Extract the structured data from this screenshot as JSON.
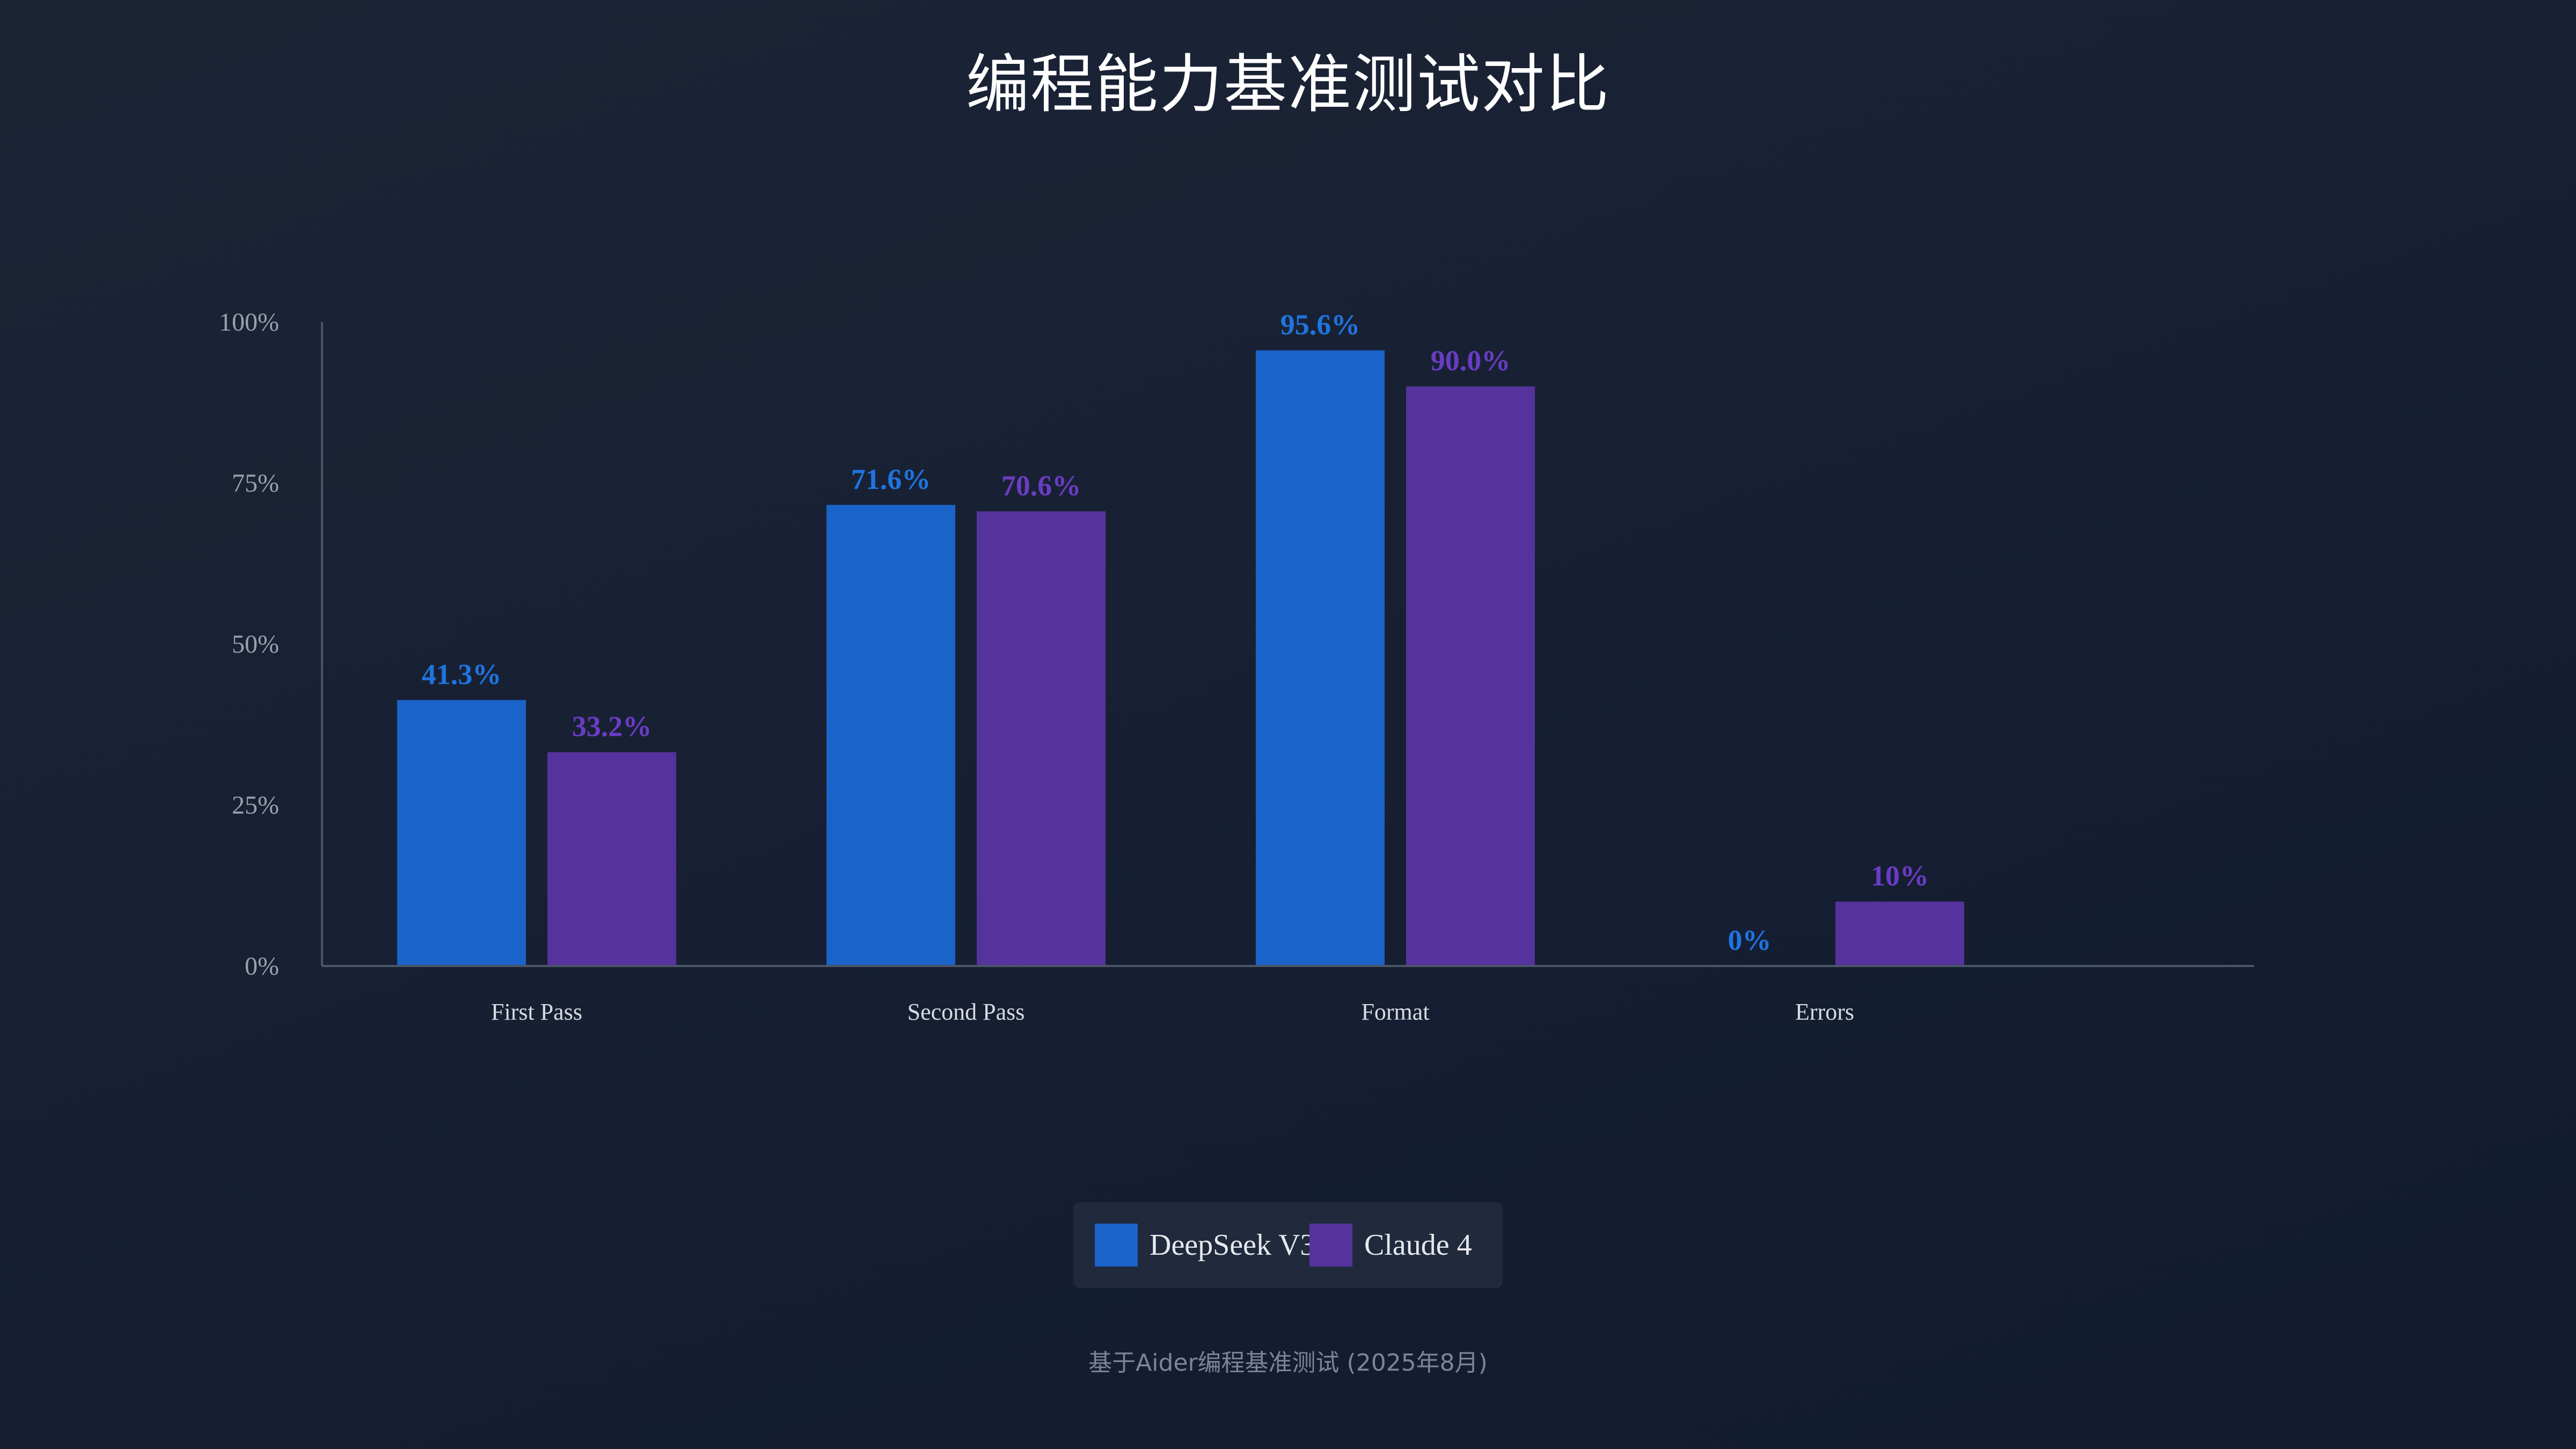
{
  "title": "编程能力基准测试对比",
  "footnote": "基于Aider编程基准测试 (2025年8月)",
  "colors": {
    "background": "#1a2234",
    "axis": "#4b5568",
    "tick_text": "#9aa1ae",
    "category_text": "#d8dbe2"
  },
  "legend": {
    "placement": "bottom-center",
    "items": [
      {
        "label": "DeepSeek V3.1",
        "color": "#1a63c9"
      },
      {
        "label": "Claude 4",
        "color": "#56339c"
      }
    ]
  },
  "chart_data": {
    "type": "bar",
    "title": "编程能力基准测试对比",
    "xlabel": "",
    "ylabel": "",
    "ylim": [
      0,
      100
    ],
    "yticks": [
      "0%",
      "25%",
      "50%",
      "75%",
      "100%"
    ],
    "ytick_values": [
      0,
      25,
      50,
      75,
      100
    ],
    "grid": false,
    "categories": [
      "First Pass",
      "Second Pass",
      "Format",
      "Errors"
    ],
    "series": [
      {
        "name": "DeepSeek V3.1",
        "color": "#1a63c9",
        "label_color": "#1f74e0",
        "values": [
          41.3,
          71.6,
          95.6,
          0
        ],
        "labels": [
          "41.3%",
          "71.6%",
          "95.6%",
          "0%"
        ]
      },
      {
        "name": "Claude 4",
        "color": "#56339c",
        "label_color": "#6a3cc4",
        "values": [
          33.2,
          70.6,
          90.0,
          10
        ],
        "labels": [
          "33.2%",
          "70.6%",
          "90.0%",
          "10%"
        ]
      }
    ]
  }
}
